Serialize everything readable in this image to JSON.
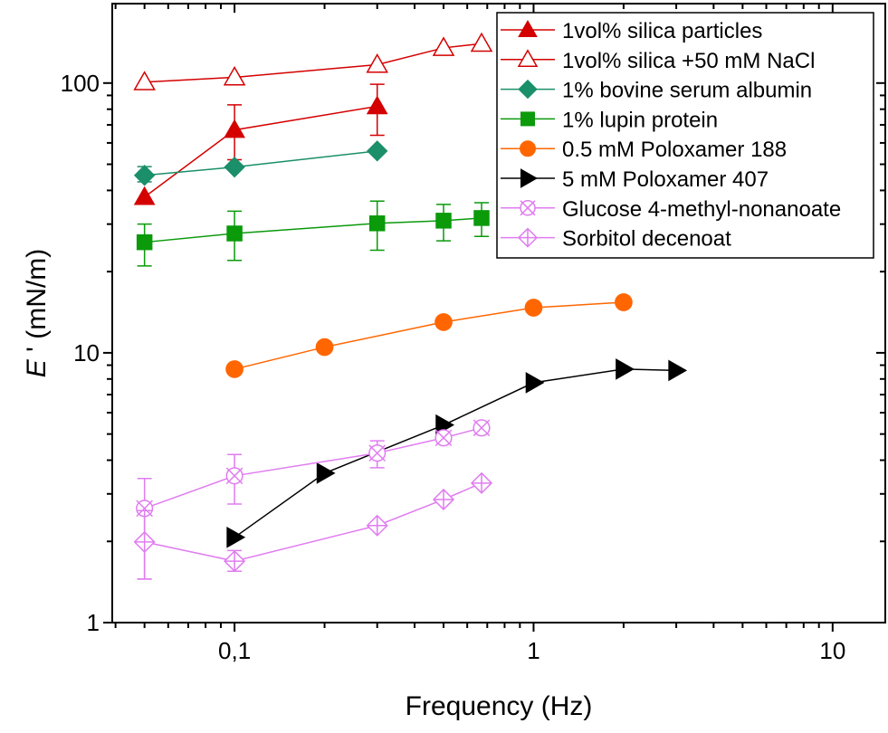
{
  "chart_data": {
    "type": "scatter",
    "xlabel": "Frequency (Hz)",
    "ylabel_symbol": "E",
    "ylabel_rest": " ' (mN/m)",
    "xscale": "log",
    "yscale": "log",
    "xlim": [
      0.039,
      15
    ],
    "ylim": [
      1,
      197
    ],
    "xticks": [
      {
        "v": 0.1,
        "label": "0,1"
      },
      {
        "v": 1,
        "label": "1"
      },
      {
        "v": 10,
        "label": "10"
      }
    ],
    "yticks": [
      {
        "v": 1,
        "label": "1"
      },
      {
        "v": 10,
        "label": "10"
      },
      {
        "v": 100,
        "label": "100"
      }
    ],
    "legend_position": "top-right",
    "grid": false,
    "series": [
      {
        "name": "1vol% silica particles",
        "color": "#d40000",
        "marker": "triangle-up",
        "filled": true,
        "x": [
          0.05,
          0.1,
          0.3
        ],
        "y": [
          37.8,
          67,
          82
        ],
        "err": [
          null,
          [
            52,
            83
          ],
          [
            64,
            99
          ]
        ]
      },
      {
        "name": "1vol% silica +50 mM NaCl",
        "color": "#d40000",
        "marker": "triangle-up",
        "filled": false,
        "x": [
          0.05,
          0.1,
          0.3,
          0.5,
          0.67
        ],
        "y": [
          100.8,
          105,
          117,
          135,
          140
        ],
        "err": [
          null,
          null,
          null,
          null,
          null
        ]
      },
      {
        "name": "1% bovine serum albumin",
        "color": "#1a8f6a",
        "marker": "diamond",
        "filled": true,
        "x": [
          0.05,
          0.1,
          0.3
        ],
        "y": [
          45.5,
          48.8,
          56
        ],
        "err": [
          [
            43,
            49
          ],
          null,
          null
        ]
      },
      {
        "name": "1% lupin protein",
        "color": "#0a9a0a",
        "marker": "square",
        "filled": true,
        "x": [
          0.05,
          0.1,
          0.3,
          0.5,
          0.67
        ],
        "y": [
          25.7,
          27.7,
          30.2,
          30.9,
          31.6
        ],
        "err": [
          [
            21,
            30
          ],
          [
            22,
            33.5
          ],
          [
            24,
            36.5
          ],
          [
            26,
            35.5
          ],
          [
            27,
            36
          ]
        ]
      },
      {
        "name": "0.5 mM Poloxamer 188",
        "color": "#ff6600",
        "marker": "circle",
        "filled": true,
        "x": [
          0.1,
          0.2,
          0.5,
          1,
          2
        ],
        "y": [
          8.7,
          10.5,
          13,
          14.7,
          15.4
        ],
        "err": [
          null,
          null,
          null,
          null,
          null
        ]
      },
      {
        "name": "5 mM Poloxamer 407",
        "color": "#000000",
        "marker": "triangle-right",
        "filled": true,
        "x": [
          0.1,
          0.2,
          0.5,
          1,
          2,
          3
        ],
        "y": [
          2.07,
          3.58,
          5.4,
          7.75,
          8.7,
          8.6
        ],
        "err": [
          null,
          null,
          null,
          null,
          null,
          null
        ]
      },
      {
        "name": "Glucose 4-methyl-nonanoate",
        "color": "#e07cf0",
        "marker": "circle-x",
        "filled": false,
        "x": [
          0.05,
          0.1,
          0.3,
          0.5,
          0.67
        ],
        "y": [
          2.65,
          3.5,
          4.25,
          4.84,
          5.27
        ],
        "err": [
          [
            1.45,
            3.42
          ],
          [
            2.75,
            4.2
          ],
          [
            3.75,
            4.72
          ],
          null,
          null
        ]
      },
      {
        "name": "Sorbitol decenoat",
        "color": "#e07cf0",
        "marker": "diamond-plus",
        "filled": false,
        "x": [
          0.05,
          0.1,
          0.3,
          0.5,
          0.67
        ],
        "y": [
          1.99,
          1.69,
          2.29,
          2.86,
          3.29
        ],
        "err": [
          [
            1.45,
            2.6
          ],
          [
            1.55,
            1.85
          ],
          null,
          null,
          null
        ]
      }
    ]
  }
}
